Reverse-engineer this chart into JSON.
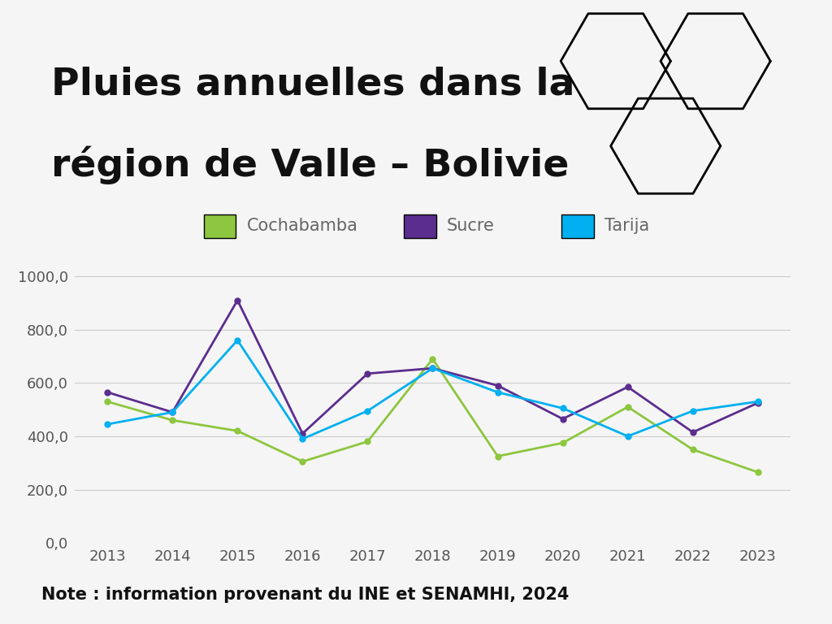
{
  "title_line1": "Pluies annuelles dans la",
  "title_line2": "région de Valle – Bolivie",
  "note": "Note : information provenant du INE et SENAMHI, 2024",
  "years": [
    2013,
    2014,
    2015,
    2016,
    2017,
    2018,
    2019,
    2020,
    2021,
    2022,
    2023
  ],
  "cochabamba": [
    530,
    460,
    420,
    305,
    380,
    690,
    325,
    375,
    510,
    350,
    265
  ],
  "sucre": [
    565,
    490,
    910,
    410,
    635,
    655,
    590,
    465,
    585,
    415,
    525
  ],
  "tarija": [
    445,
    490,
    760,
    390,
    495,
    655,
    565,
    505,
    400,
    495,
    530
  ],
  "color_cochabamba": "#8dc63f",
  "color_sucre": "#5b2d8e",
  "color_tarija": "#00b0f0",
  "background_color": "#f5f5f5",
  "ylabel_ticks": [
    0,
    200,
    400,
    600,
    800,
    1000
  ],
  "ylim": [
    0,
    1100
  ],
  "title_fontsize": 34,
  "legend_fontsize": 15,
  "tick_fontsize": 13,
  "note_fontsize": 15
}
